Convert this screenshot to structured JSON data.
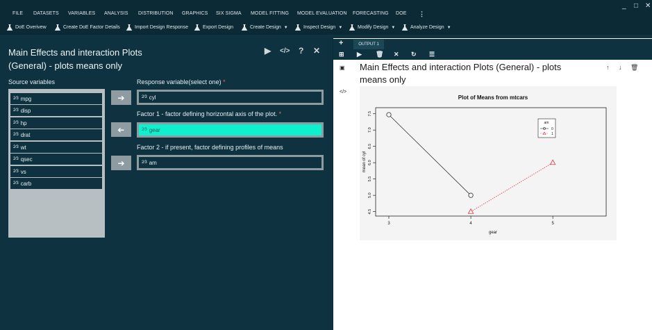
{
  "menubar": {
    "items": [
      "FILE",
      "DATASETS",
      "VARIABLES",
      "ANALYSIS",
      "DISTRIBUTION",
      "GRAPHICS",
      "SIX SIGMA",
      "MODEL FITTING",
      "MODEL EVALUATION",
      "FORECASTING",
      "DOE"
    ],
    "more": "⋮",
    "minimize": "_",
    "maximize": "□",
    "close": "✕"
  },
  "toolbar": {
    "items": [
      "DoE Overivew",
      "Create DoE Factor Details",
      "Import Design Response",
      "Export Design",
      "Create Design",
      "Inspect Design",
      "Modify Design",
      "Analyze Design"
    ]
  },
  "dialog": {
    "title": "Main Effects and interaction Plots (General) - plots means only",
    "source_label": "Source variables",
    "source_vars": [
      "mpg",
      "disp",
      "hp",
      "drat",
      "wt",
      "qsec",
      "vs",
      "carb"
    ],
    "response_label": "Response variable(select one)",
    "response_value": "cyl",
    "factor1_label": "Factor 1 - factor defining horizontal axis of the plot.",
    "factor1_value": "gear",
    "factor2_label": "Factor 2 - if present, factor defining profiles of means",
    "factor2_value": "am",
    "required_mark": "*",
    "var_prefix": "2⁄3"
  },
  "output": {
    "tab_label": "OUTPUT 1",
    "title": "Main Effects and interaction Plots (General) - plots means only"
  },
  "chart_data": {
    "type": "line",
    "title": "Plot of Means from mtcars",
    "xlabel": "gear",
    "ylabel": "mean of cyl",
    "x_ticks": [
      "3",
      "4",
      "5"
    ],
    "y_ticks": [
      "4.5",
      "5.0",
      "5.5",
      "6.0",
      "6.5",
      "7.0",
      "7.5"
    ],
    "xlim": [
      3,
      5.6
    ],
    "ylim": [
      4.45,
      7.6
    ],
    "legend": {
      "title": "am",
      "entries": [
        "0",
        "1"
      ],
      "placement": "top-right"
    },
    "series": [
      {
        "name": "0",
        "x": [
          3,
          4
        ],
        "y": [
          7.47,
          5.0
        ],
        "color": "#333333",
        "marker": "circle",
        "line": "solid"
      },
      {
        "name": "1",
        "x": [
          4,
          5
        ],
        "y": [
          4.5,
          6.0
        ],
        "color": "#e0303a",
        "marker": "triangle",
        "line": "dotted"
      }
    ]
  }
}
